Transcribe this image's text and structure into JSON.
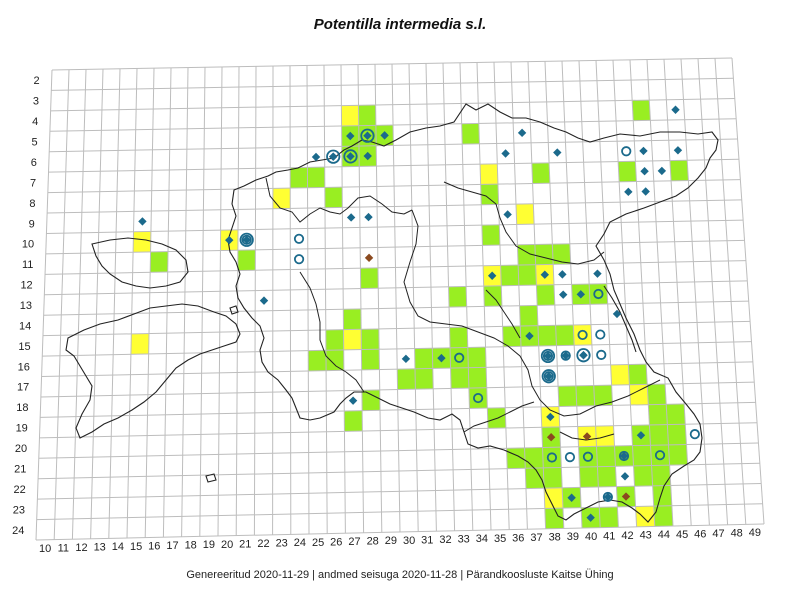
{
  "title": "Potentilla intermedia s.l.",
  "footer": "Genereeritud 2020-11-29  |  andmed seisuga 2020-11-28  |  Pärandkoosluste Kaitse Ühing",
  "grid": {
    "rows": [
      "2",
      "3",
      "4",
      "5",
      "6",
      "7",
      "8",
      "9",
      "10",
      "11",
      "12",
      "13",
      "14",
      "15",
      "16",
      "17",
      "18",
      "19",
      "20",
      "21",
      "22",
      "23",
      "24"
    ],
    "cols": [
      "10",
      "11",
      "12",
      "13",
      "14",
      "15",
      "16",
      "17",
      "18",
      "19",
      "20",
      "21",
      "22",
      "23",
      "24",
      "25",
      "26",
      "27",
      "28",
      "29",
      "30",
      "31",
      "32",
      "33",
      "34",
      "35",
      "36",
      "37",
      "38",
      "39",
      "40",
      "41",
      "42",
      "43",
      "44",
      "45",
      "46",
      "47",
      "48",
      "49"
    ]
  },
  "colors": {
    "green": "#99ee22",
    "yellow": "#ffff33",
    "diamond_blue": "#1b6a8c",
    "diamond_brown": "#8b4a1f",
    "circle": "#1b6a8c",
    "grid": "#bdbdbd",
    "border": "#222222"
  },
  "cells": {
    "green": [
      [
        27,
        4
      ],
      [
        28,
        4
      ],
      [
        27,
        5
      ],
      [
        28,
        5
      ],
      [
        29,
        5
      ],
      [
        27,
        6
      ],
      [
        28,
        6
      ],
      [
        24,
        7
      ],
      [
        25,
        7
      ],
      [
        26,
        8
      ],
      [
        21,
        11
      ],
      [
        16,
        11
      ],
      [
        34,
        5
      ],
      [
        38,
        7
      ],
      [
        43,
        7
      ],
      [
        46,
        7
      ],
      [
        44,
        4
      ],
      [
        35,
        8
      ],
      [
        35,
        10
      ],
      [
        37,
        11
      ],
      [
        38,
        11
      ],
      [
        39,
        11
      ],
      [
        36,
        12
      ],
      [
        37,
        12
      ],
      [
        35,
        13
      ],
      [
        33,
        13
      ],
      [
        38,
        13
      ],
      [
        40,
        13
      ],
      [
        41,
        13
      ],
      [
        37,
        14
      ],
      [
        28,
        12
      ],
      [
        27,
        14
      ],
      [
        27,
        15
      ],
      [
        26,
        15
      ],
      [
        28,
        15
      ],
      [
        25,
        16
      ],
      [
        26,
        16
      ],
      [
        28,
        16
      ],
      [
        33,
        15
      ],
      [
        33,
        16
      ],
      [
        34,
        16
      ],
      [
        36,
        15
      ],
      [
        37,
        15
      ],
      [
        38,
        15
      ],
      [
        39,
        15
      ],
      [
        40,
        15
      ],
      [
        31,
        16
      ],
      [
        32,
        16
      ],
      [
        33,
        17
      ],
      [
        34,
        17
      ],
      [
        30,
        17
      ],
      [
        31,
        17
      ],
      [
        28,
        18
      ],
      [
        27,
        19
      ],
      [
        34,
        18
      ],
      [
        39,
        18
      ],
      [
        40,
        18
      ],
      [
        41,
        18
      ],
      [
        35,
        19
      ],
      [
        43,
        17
      ],
      [
        42,
        17
      ],
      [
        43,
        18
      ],
      [
        44,
        18
      ],
      [
        44,
        19
      ],
      [
        45,
        19
      ],
      [
        45,
        20
      ],
      [
        44,
        20
      ],
      [
        43,
        20
      ],
      [
        45,
        21
      ],
      [
        44,
        21
      ],
      [
        43,
        21
      ],
      [
        42,
        21
      ],
      [
        41,
        21
      ],
      [
        40,
        21
      ],
      [
        36,
        21
      ],
      [
        37,
        21
      ],
      [
        38,
        20
      ],
      [
        38,
        21
      ],
      [
        37,
        22
      ],
      [
        38,
        22
      ],
      [
        39,
        23
      ],
      [
        40,
        22
      ],
      [
        41,
        22
      ],
      [
        43,
        22
      ],
      [
        44,
        22
      ],
      [
        42,
        23
      ],
      [
        44,
        23
      ],
      [
        44,
        24
      ],
      [
        40,
        24
      ],
      [
        41,
        24
      ],
      [
        38,
        24
      ]
    ],
    "yellow": [
      [
        27,
        4
      ],
      [
        35,
        7
      ],
      [
        23,
        8
      ],
      [
        37,
        9
      ],
      [
        20,
        10
      ],
      [
        15,
        10
      ],
      [
        15,
        15
      ],
      [
        27,
        15
      ],
      [
        35,
        12
      ],
      [
        38,
        12
      ],
      [
        40,
        15
      ],
      [
        42,
        17
      ],
      [
        43,
        18
      ],
      [
        38,
        19
      ],
      [
        40,
        20
      ],
      [
        41,
        20
      ],
      [
        38,
        23
      ],
      [
        43,
        24
      ]
    ]
  },
  "markers": {
    "diamond": [
      [
        26,
        6
      ],
      [
        27,
        5
      ],
      [
        29,
        5
      ],
      [
        25,
        6
      ],
      [
        28,
        6
      ],
      [
        27,
        9
      ],
      [
        28,
        9
      ],
      [
        15,
        9
      ],
      [
        20,
        10
      ],
      [
        22,
        13
      ],
      [
        36,
        6
      ],
      [
        37,
        5
      ],
      [
        39,
        6
      ],
      [
        45,
        7
      ],
      [
        46,
        4
      ],
      [
        46,
        6
      ],
      [
        44,
        6
      ],
      [
        44,
        7
      ],
      [
        43,
        8
      ],
      [
        44,
        8
      ],
      [
        36,
        9
      ],
      [
        35,
        12
      ],
      [
        38,
        12
      ],
      [
        39,
        12
      ],
      [
        39,
        13
      ],
      [
        41,
        12
      ],
      [
        42,
        14
      ],
      [
        39,
        16
      ],
      [
        37,
        15
      ],
      [
        30,
        16
      ],
      [
        32,
        16
      ],
      [
        40,
        16
      ],
      [
        40,
        13
      ],
      [
        27,
        18
      ],
      [
        38,
        19
      ],
      [
        41,
        23
      ],
      [
        42,
        21
      ],
      [
        43,
        20
      ],
      [
        39,
        23
      ],
      [
        40,
        24
      ],
      [
        42,
        22
      ]
    ],
    "diamond_brown": [
      [
        28,
        11
      ],
      [
        38,
        20
      ],
      [
        40,
        20
      ],
      [
        42,
        23
      ]
    ],
    "circle": [
      [
        24,
        10
      ],
      [
        24,
        11
      ],
      [
        21,
        10
      ],
      [
        33,
        16
      ],
      [
        34,
        18
      ],
      [
        43,
        6
      ],
      [
        41,
        13
      ],
      [
        40,
        15
      ],
      [
        41,
        15
      ],
      [
        41,
        16
      ],
      [
        39,
        16
      ],
      [
        38,
        16
      ],
      [
        38,
        17
      ],
      [
        38,
        21
      ],
      [
        40,
        21
      ],
      [
        42,
        21
      ],
      [
        44,
        21
      ],
      [
        46,
        20
      ],
      [
        41,
        23
      ],
      [
        39,
        21
      ]
    ],
    "diamond_circled": [
      [
        26,
        6
      ],
      [
        27,
        6
      ],
      [
        28,
        5
      ],
      [
        21,
        10
      ],
      [
        38,
        16
      ],
      [
        40,
        16
      ],
      [
        38,
        17
      ]
    ]
  },
  "boundary_labels": []
}
